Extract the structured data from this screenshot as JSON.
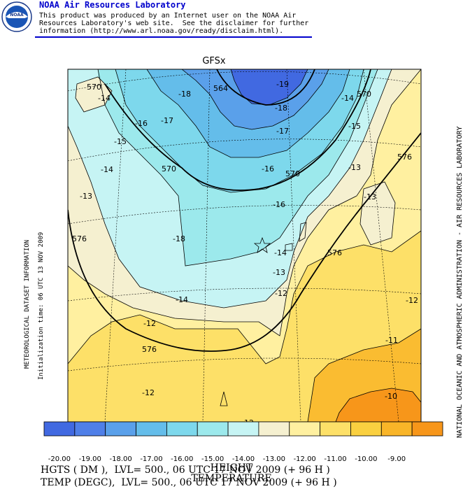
{
  "header": {
    "title": "NOAA Air Resources Laboratory",
    "line1": "This product was produced by an Internet user on the NOAA Air",
    "line2": "Resources Laboratory's web site.  See the disclaimer for further",
    "line3": "information (http://www.arl.noaa.gov/ready/disclaim.html).",
    "logo_text": "NOAA"
  },
  "map": {
    "model_title": "GFSx",
    "left_side_text_1": "METEOROLOGICAL DATASET INFORMATION",
    "left_side_text_2": "Initialization time: 06 UTC 13 NOV 2009",
    "right_side_text": "NATIONAL OCEANIC AND ATMOSPHERIC ADMINISTRATION - AIR RESOURCES LABORATORY",
    "height_contour_labels": [
      "570",
      "564",
      "570",
      "570",
      "570",
      "576",
      "576",
      "576",
      "576"
    ],
    "temp_contour_labels": [
      "-14",
      "-16",
      "-17",
      "-18",
      "-19",
      "-18",
      "-17",
      "-16",
      "-15",
      "-14",
      "-13",
      "-18",
      "-16",
      "-15",
      "-14",
      "-13",
      "-13",
      "-14",
      "-12",
      "-13",
      "-14",
      "-12",
      "-12",
      "-11",
      "-10",
      "-12",
      "-12"
    ]
  },
  "colorbar": {
    "colors": [
      "#4169e1",
      "#4f7fe8",
      "#5aa0ea",
      "#64bdea",
      "#7dd8ec",
      "#9ce9ec",
      "#c6f4f4",
      "#f5f0d0",
      "#fff0a0",
      "#fde068",
      "#fad040",
      "#f9b528",
      "#f7961a"
    ],
    "labels": [
      "-20.00",
      "-19.00",
      "-18.00",
      "-17.00",
      "-16.00",
      "-15.00",
      "-14.00",
      "-13.00",
      "-12.00",
      "-11.00",
      "-10.00",
      "-9.00"
    ]
  },
  "footer": {
    "title1": "HEIGHT",
    "title2": "TEMPERATURE",
    "line1": "HGTS ( DM ),  LVL= 500., 06 UTC 17 NOV 2009 (+ 96 H )",
    "line2": "TEMP (DEGC),  LVL= 500., 06 UTC 17 NOV 2009 (+ 96 H )"
  }
}
